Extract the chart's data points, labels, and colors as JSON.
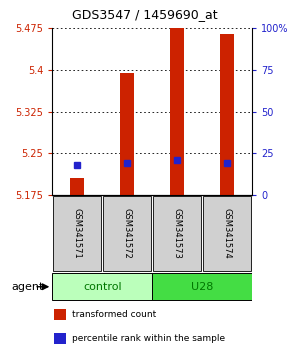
{
  "title": "GDS3547 / 1459690_at",
  "samples": [
    "GSM341571",
    "GSM341572",
    "GSM341573",
    "GSM341574"
  ],
  "bar_bottom": 5.175,
  "transformed_counts": [
    5.205,
    5.395,
    5.475,
    5.465
  ],
  "percentile_ranks": [
    5.228,
    5.232,
    5.237,
    5.233
  ],
  "ylim_left": [
    5.175,
    5.475
  ],
  "ylim_right": [
    0,
    100
  ],
  "yticks_left": [
    5.175,
    5.25,
    5.325,
    5.4,
    5.475
  ],
  "ytick_labels_left": [
    "5.175",
    "5.25",
    "5.325",
    "5.4",
    "5.475"
  ],
  "yticks_right": [
    0,
    25,
    50,
    75,
    100
  ],
  "ytick_labels_right": [
    "0",
    "25",
    "50",
    "75",
    "100%"
  ],
  "bar_color": "#cc2200",
  "dot_color": "#2222cc",
  "group_colors": {
    "control": "#bbffbb",
    "U28": "#44dd44"
  },
  "group_label_color": "#007700",
  "group_spans": {
    "control": [
      0.5,
      2.5
    ],
    "U28": [
      2.5,
      4.5
    ]
  },
  "agent_label": "agent",
  "legend_items": [
    {
      "label": "transformed count",
      "color": "#cc2200"
    },
    {
      "label": "percentile rank within the sample",
      "color": "#2222cc"
    }
  ]
}
